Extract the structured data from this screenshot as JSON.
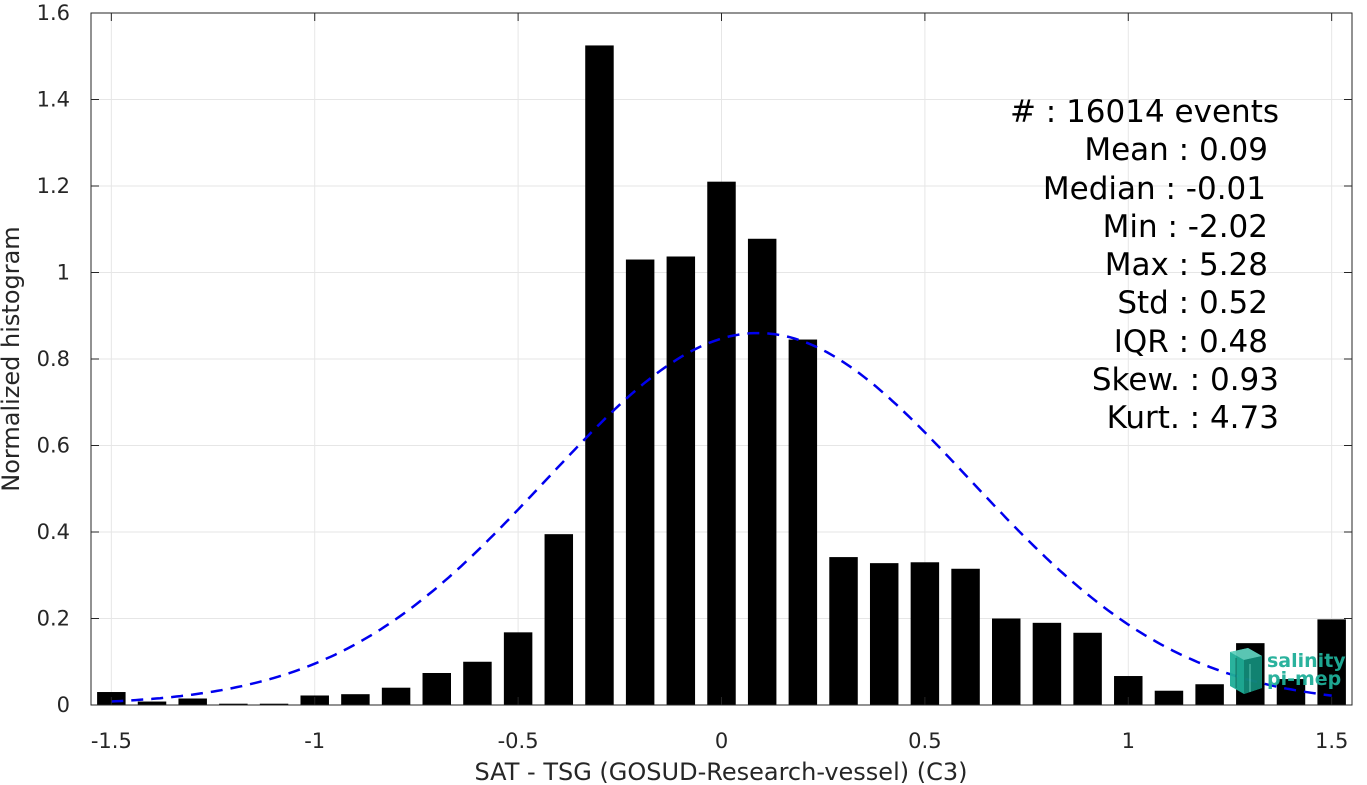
{
  "chart_data": {
    "type": "bar",
    "xlabel": "SAT - TSG (GOSUD-Research-vessel) (C3)",
    "ylabel": "Normalized histogram",
    "xlim": [
      -1.55,
      1.55
    ],
    "ylim": [
      0,
      1.6
    ],
    "x_ticks": [
      -1.5,
      -1,
      -0.5,
      0,
      0.5,
      1,
      1.5
    ],
    "x_tick_labels": [
      "-1.5",
      "-1",
      "-0.5",
      "0",
      "0.5",
      "1",
      "1.5"
    ],
    "y_ticks": [
      0,
      0.2,
      0.4,
      0.6,
      0.8,
      1,
      1.2,
      1.4,
      1.6
    ],
    "y_tick_labels": [
      "0",
      "0.2",
      "0.4",
      "0.6",
      "0.8",
      "1",
      "1.2",
      "1.4",
      "1.6"
    ],
    "grid": true,
    "bar_width": 0.07,
    "bar_color": "#000000",
    "bins": [
      -1.5,
      -1.4,
      -1.3,
      -1.2,
      -1.1,
      -1.0,
      -0.9,
      -0.8,
      -0.7,
      -0.6,
      -0.5,
      -0.4,
      -0.3,
      -0.2,
      -0.1,
      0.0,
      0.1,
      0.2,
      0.3,
      0.4,
      0.5,
      0.6,
      0.7,
      0.8,
      0.9,
      1.0,
      1.1,
      1.2,
      1.3,
      1.4,
      1.5
    ],
    "values": [
      0.03,
      0.008,
      0.015,
      0.003,
      0.003,
      0.022,
      0.025,
      0.04,
      0.074,
      0.1,
      0.168,
      0.395,
      1.525,
      1.03,
      1.037,
      1.21,
      1.078,
      0.845,
      0.342,
      0.328,
      0.33,
      0.315,
      0.2,
      0.19,
      0.167,
      0.067,
      0.033,
      0.048,
      0.143,
      0.06,
      0.198
    ],
    "fit_curve": {
      "kind": "gaussian",
      "mean": 0.09,
      "std": 0.52,
      "peak": 0.86,
      "color": "#0000ee",
      "style": "dashed"
    }
  },
  "stats": [
    {
      "label": "#  : 16014 events"
    },
    {
      "label": "Mean : 0.09"
    },
    {
      "label": "Median : -0.01"
    },
    {
      "label": "Min : -2.02"
    },
    {
      "label": "Max : 5.28"
    },
    {
      "label": "Std : 0.52"
    },
    {
      "label": "IQR : 0.48"
    },
    {
      "label": "Skew. : 0.93"
    },
    {
      "label": "Kurt. : 4.73"
    }
  ],
  "logo": {
    "line1": "salinity",
    "line2": "pi-mep",
    "color": "#1fae98"
  }
}
